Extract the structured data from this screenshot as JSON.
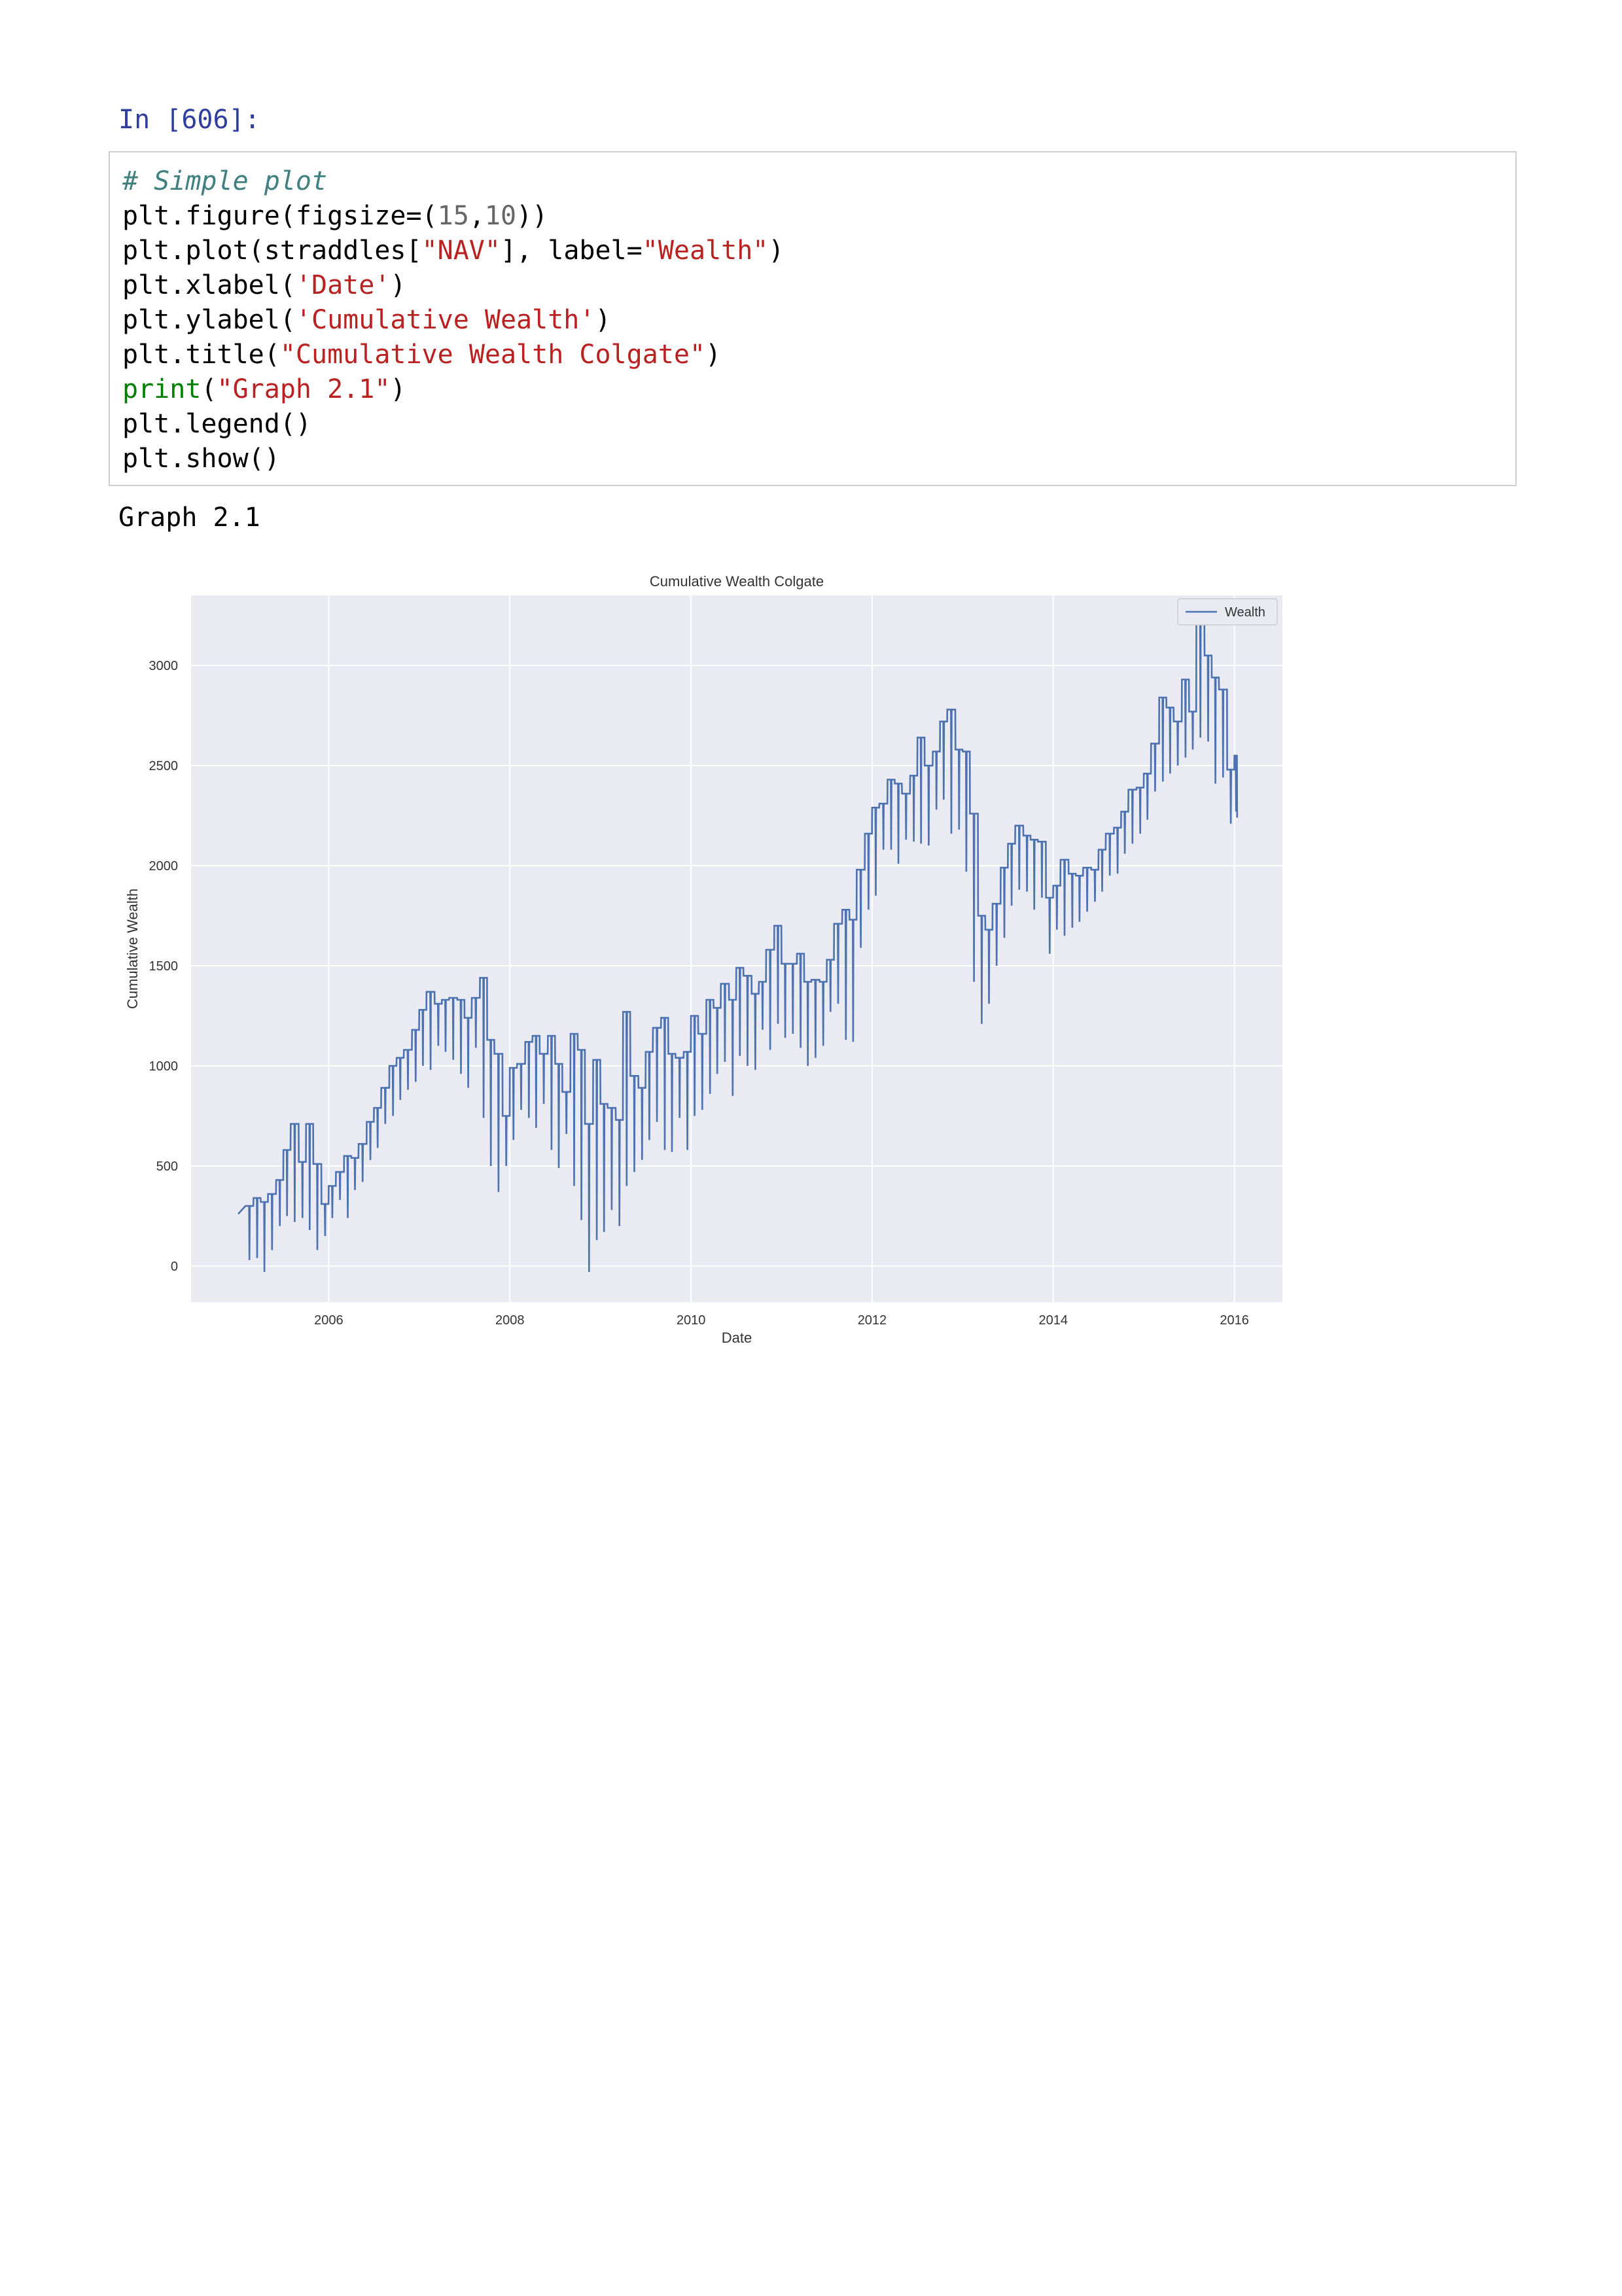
{
  "notebook": {
    "prompt": "In [606]:",
    "code_lines": [
      [
        {
          "t": "# Simple plot",
          "c": "com"
        }
      ],
      [
        {
          "t": "plt.figure(figsize=(",
          "c": ""
        },
        {
          "t": "15",
          "c": "num"
        },
        {
          "t": ",",
          "c": ""
        },
        {
          "t": "10",
          "c": "num"
        },
        {
          "t": "))",
          "c": ""
        }
      ],
      [
        {
          "t": "plt.plot(straddles[",
          "c": ""
        },
        {
          "t": "\"NAV\"",
          "c": "str"
        },
        {
          "t": "], label=",
          "c": ""
        },
        {
          "t": "\"Wealth\"",
          "c": "str"
        },
        {
          "t": ")",
          "c": ""
        }
      ],
      [
        {
          "t": "plt.xlabel(",
          "c": ""
        },
        {
          "t": "'Date'",
          "c": "str"
        },
        {
          "t": ")",
          "c": ""
        }
      ],
      [
        {
          "t": "plt.ylabel(",
          "c": ""
        },
        {
          "t": "'Cumulative Wealth'",
          "c": "str"
        },
        {
          "t": ")",
          "c": ""
        }
      ],
      [
        {
          "t": "plt.title(",
          "c": ""
        },
        {
          "t": "\"Cumulative Wealth Colgate\"",
          "c": "str"
        },
        {
          "t": ")",
          "c": ""
        }
      ],
      [
        {
          "t": "print",
          "c": "kw"
        },
        {
          "t": "(",
          "c": ""
        },
        {
          "t": "\"Graph 2.1\"",
          "c": "str"
        },
        {
          "t": ")",
          "c": ""
        }
      ],
      [
        {
          "t": "plt.legend()",
          "c": ""
        }
      ],
      [
        {
          "t": "plt.show()",
          "c": ""
        }
      ]
    ],
    "output_text": "Graph 2.1"
  },
  "colors": {
    "plot_background": "#eaeaf2",
    "grid": "#ffffff",
    "line": "#4c72b0"
  },
  "chart_data": {
    "type": "line",
    "title": "Cumulative Wealth Colgate",
    "xlabel": "Date",
    "ylabel": "Cumulative Wealth",
    "xlim": [
      2004.48,
      2016.53
    ],
    "ylim": [
      -180,
      3350
    ],
    "x_ticks": [
      "2006",
      "2008",
      "2010",
      "2012",
      "2014",
      "2016"
    ],
    "y_ticks": [
      "0",
      "500",
      "1000",
      "1500",
      "2000",
      "2500",
      "3000"
    ],
    "grid": true,
    "legend": {
      "position": "top-right",
      "entries": [
        "Wealth"
      ]
    },
    "series": [
      {
        "name": "Wealth",
        "monthly": [
          {
            "x": 2005.0,
            "start": 260,
            "low": 260,
            "high": 260
          },
          {
            "x": 2005.08,
            "start": 300,
            "low": 30,
            "high": 300
          },
          {
            "x": 2005.17,
            "start": 340,
            "low": 40,
            "high": 340
          },
          {
            "x": 2005.25,
            "start": 320,
            "low": -30,
            "high": 320
          },
          {
            "x": 2005.33,
            "start": 360,
            "low": 80,
            "high": 360
          },
          {
            "x": 2005.42,
            "start": 430,
            "low": 200,
            "high": 430
          },
          {
            "x": 2005.5,
            "start": 580,
            "low": 250,
            "high": 580
          },
          {
            "x": 2005.58,
            "start": 710,
            "low": 220,
            "high": 710
          },
          {
            "x": 2005.67,
            "start": 520,
            "low": 240,
            "high": 520
          },
          {
            "x": 2005.75,
            "start": 710,
            "low": 180,
            "high": 710
          },
          {
            "x": 2005.83,
            "start": 510,
            "low": 80,
            "high": 510
          },
          {
            "x": 2005.92,
            "start": 310,
            "low": 150,
            "high": 310
          },
          {
            "x": 2006.0,
            "start": 400,
            "low": 240,
            "high": 400
          },
          {
            "x": 2006.08,
            "start": 470,
            "low": 330,
            "high": 470
          },
          {
            "x": 2006.17,
            "start": 550,
            "low": 240,
            "high": 550
          },
          {
            "x": 2006.25,
            "start": 540,
            "low": 380,
            "high": 540
          },
          {
            "x": 2006.33,
            "start": 610,
            "low": 420,
            "high": 610
          },
          {
            "x": 2006.42,
            "start": 720,
            "low": 530,
            "high": 720
          },
          {
            "x": 2006.5,
            "start": 790,
            "low": 590,
            "high": 790
          },
          {
            "x": 2006.58,
            "start": 890,
            "low": 710,
            "high": 890
          },
          {
            "x": 2006.67,
            "start": 1000,
            "low": 750,
            "high": 1000
          },
          {
            "x": 2006.75,
            "start": 1040,
            "low": 830,
            "high": 1040
          },
          {
            "x": 2006.83,
            "start": 1080,
            "low": 880,
            "high": 1080
          },
          {
            "x": 2006.92,
            "start": 1180,
            "low": 920,
            "high": 1180
          },
          {
            "x": 2007.0,
            "start": 1280,
            "low": 1000,
            "high": 1280
          },
          {
            "x": 2007.08,
            "start": 1370,
            "low": 980,
            "high": 1370
          },
          {
            "x": 2007.17,
            "start": 1310,
            "low": 1100,
            "high": 1310
          },
          {
            "x": 2007.25,
            "start": 1330,
            "low": 1070,
            "high": 1330
          },
          {
            "x": 2007.33,
            "start": 1340,
            "low": 1030,
            "high": 1340
          },
          {
            "x": 2007.42,
            "start": 1330,
            "low": 960,
            "high": 1330
          },
          {
            "x": 2007.5,
            "start": 1240,
            "low": 890,
            "high": 1240
          },
          {
            "x": 2007.58,
            "start": 1340,
            "low": 1090,
            "high": 1340
          },
          {
            "x": 2007.67,
            "start": 1440,
            "low": 740,
            "high": 1440
          },
          {
            "x": 2007.75,
            "start": 1130,
            "low": 500,
            "high": 1130
          },
          {
            "x": 2007.83,
            "start": 1060,
            "low": 370,
            "high": 1060
          },
          {
            "x": 2007.92,
            "start": 750,
            "low": 500,
            "high": 750
          },
          {
            "x": 2008.0,
            "start": 990,
            "low": 630,
            "high": 990
          },
          {
            "x": 2008.08,
            "start": 1010,
            "low": 780,
            "high": 1010
          },
          {
            "x": 2008.17,
            "start": 1120,
            "low": 740,
            "high": 1120
          },
          {
            "x": 2008.25,
            "start": 1150,
            "low": 690,
            "high": 1150
          },
          {
            "x": 2008.33,
            "start": 1060,
            "low": 810,
            "high": 1060
          },
          {
            "x": 2008.42,
            "start": 1150,
            "low": 580,
            "high": 1150
          },
          {
            "x": 2008.5,
            "start": 1010,
            "low": 490,
            "high": 1010
          },
          {
            "x": 2008.58,
            "start": 870,
            "low": 660,
            "high": 870
          },
          {
            "x": 2008.67,
            "start": 1160,
            "low": 400,
            "high": 1160
          },
          {
            "x": 2008.75,
            "start": 1080,
            "low": 230,
            "high": 1080
          },
          {
            "x": 2008.83,
            "start": 710,
            "low": -30,
            "high": 710
          },
          {
            "x": 2008.92,
            "start": 1030,
            "low": 130,
            "high": 1030
          },
          {
            "x": 2009.0,
            "start": 810,
            "low": 170,
            "high": 810
          },
          {
            "x": 2009.08,
            "start": 790,
            "low": 280,
            "high": 790
          },
          {
            "x": 2009.17,
            "start": 730,
            "low": 200,
            "high": 730
          },
          {
            "x": 2009.25,
            "start": 1270,
            "low": 400,
            "high": 1270
          },
          {
            "x": 2009.33,
            "start": 950,
            "low": 470,
            "high": 950
          },
          {
            "x": 2009.42,
            "start": 890,
            "low": 530,
            "high": 890
          },
          {
            "x": 2009.5,
            "start": 1070,
            "low": 630,
            "high": 1070
          },
          {
            "x": 2009.58,
            "start": 1190,
            "low": 720,
            "high": 1190
          },
          {
            "x": 2009.67,
            "start": 1240,
            "low": 580,
            "high": 1240
          },
          {
            "x": 2009.75,
            "start": 1060,
            "low": 570,
            "high": 1060
          },
          {
            "x": 2009.83,
            "start": 1040,
            "low": 740,
            "high": 1040
          },
          {
            "x": 2009.92,
            "start": 1070,
            "low": 580,
            "high": 1070
          },
          {
            "x": 2010.0,
            "start": 1250,
            "low": 750,
            "high": 1250
          },
          {
            "x": 2010.08,
            "start": 1160,
            "low": 780,
            "high": 1160
          },
          {
            "x": 2010.17,
            "start": 1330,
            "low": 860,
            "high": 1330
          },
          {
            "x": 2010.25,
            "start": 1290,
            "low": 960,
            "high": 1290
          },
          {
            "x": 2010.33,
            "start": 1410,
            "low": 1020,
            "high": 1410
          },
          {
            "x": 2010.42,
            "start": 1330,
            "low": 850,
            "high": 1330
          },
          {
            "x": 2010.5,
            "start": 1490,
            "low": 1050,
            "high": 1490
          },
          {
            "x": 2010.58,
            "start": 1450,
            "low": 1000,
            "high": 1450
          },
          {
            "x": 2010.67,
            "start": 1360,
            "low": 980,
            "high": 1360
          },
          {
            "x": 2010.75,
            "start": 1420,
            "low": 1180,
            "high": 1420
          },
          {
            "x": 2010.83,
            "start": 1580,
            "low": 1080,
            "high": 1580
          },
          {
            "x": 2010.92,
            "start": 1700,
            "low": 1210,
            "high": 1700
          },
          {
            "x": 2011.0,
            "start": 1510,
            "low": 1140,
            "high": 1510
          },
          {
            "x": 2011.08,
            "start": 1510,
            "low": 1160,
            "high": 1510
          },
          {
            "x": 2011.17,
            "start": 1560,
            "low": 1090,
            "high": 1560
          },
          {
            "x": 2011.25,
            "start": 1420,
            "low": 1000,
            "high": 1420
          },
          {
            "x": 2011.33,
            "start": 1430,
            "low": 1040,
            "high": 1430
          },
          {
            "x": 2011.42,
            "start": 1420,
            "low": 1100,
            "high": 1420
          },
          {
            "x": 2011.5,
            "start": 1530,
            "low": 1270,
            "high": 1530
          },
          {
            "x": 2011.58,
            "start": 1710,
            "low": 1310,
            "high": 1710
          },
          {
            "x": 2011.67,
            "start": 1780,
            "low": 1130,
            "high": 1780
          },
          {
            "x": 2011.75,
            "start": 1730,
            "low": 1120,
            "high": 1730
          },
          {
            "x": 2011.83,
            "start": 1980,
            "low": 1590,
            "high": 1980
          },
          {
            "x": 2011.92,
            "start": 2160,
            "low": 1780,
            "high": 2160
          },
          {
            "x": 2012.0,
            "start": 2290,
            "low": 1850,
            "high": 2290
          },
          {
            "x": 2012.08,
            "start": 2310,
            "low": 2080,
            "high": 2310
          },
          {
            "x": 2012.17,
            "start": 2430,
            "low": 2080,
            "high": 2430
          },
          {
            "x": 2012.25,
            "start": 2410,
            "low": 2010,
            "high": 2410
          },
          {
            "x": 2012.33,
            "start": 2360,
            "low": 2130,
            "high": 2360
          },
          {
            "x": 2012.42,
            "start": 2450,
            "low": 2120,
            "high": 2450
          },
          {
            "x": 2012.5,
            "start": 2640,
            "low": 2110,
            "high": 2640
          },
          {
            "x": 2012.58,
            "start": 2500,
            "low": 2100,
            "high": 2500
          },
          {
            "x": 2012.67,
            "start": 2570,
            "low": 2280,
            "high": 2570
          },
          {
            "x": 2012.75,
            "start": 2720,
            "low": 2330,
            "high": 2720
          },
          {
            "x": 2012.83,
            "start": 2780,
            "low": 2160,
            "high": 2780
          },
          {
            "x": 2012.92,
            "start": 2580,
            "low": 2180,
            "high": 2580
          },
          {
            "x": 2013.0,
            "start": 2570,
            "low": 1970,
            "high": 2570
          },
          {
            "x": 2013.08,
            "start": 2260,
            "low": 1420,
            "high": 2260
          },
          {
            "x": 2013.17,
            "start": 1750,
            "low": 1210,
            "high": 1750
          },
          {
            "x": 2013.25,
            "start": 1680,
            "low": 1310,
            "high": 1680
          },
          {
            "x": 2013.33,
            "start": 1810,
            "low": 1500,
            "high": 1810
          },
          {
            "x": 2013.42,
            "start": 1990,
            "low": 1640,
            "high": 1990
          },
          {
            "x": 2013.5,
            "start": 2110,
            "low": 1800,
            "high": 2110
          },
          {
            "x": 2013.58,
            "start": 2200,
            "low": 1880,
            "high": 2200
          },
          {
            "x": 2013.67,
            "start": 2150,
            "low": 1870,
            "high": 2150
          },
          {
            "x": 2013.75,
            "start": 2130,
            "low": 1780,
            "high": 2130
          },
          {
            "x": 2013.83,
            "start": 2120,
            "low": 1840,
            "high": 2120
          },
          {
            "x": 2013.92,
            "start": 1840,
            "low": 1560,
            "high": 1840
          },
          {
            "x": 2014.0,
            "start": 1900,
            "low": 1680,
            "high": 1900
          },
          {
            "x": 2014.08,
            "start": 2030,
            "low": 1650,
            "high": 2030
          },
          {
            "x": 2014.17,
            "start": 1960,
            "low": 1690,
            "high": 1960
          },
          {
            "x": 2014.25,
            "start": 1950,
            "low": 1720,
            "high": 1950
          },
          {
            "x": 2014.33,
            "start": 1990,
            "low": 1770,
            "high": 1990
          },
          {
            "x": 2014.42,
            "start": 1980,
            "low": 1820,
            "high": 1980
          },
          {
            "x": 2014.5,
            "start": 2080,
            "low": 1870,
            "high": 2080
          },
          {
            "x": 2014.58,
            "start": 2160,
            "low": 1950,
            "high": 2160
          },
          {
            "x": 2014.67,
            "start": 2190,
            "low": 1960,
            "high": 2190
          },
          {
            "x": 2014.75,
            "start": 2270,
            "low": 2060,
            "high": 2270
          },
          {
            "x": 2014.83,
            "start": 2380,
            "low": 2110,
            "high": 2380
          },
          {
            "x": 2014.92,
            "start": 2390,
            "low": 2160,
            "high": 2390
          },
          {
            "x": 2015.0,
            "start": 2460,
            "low": 2230,
            "high": 2460
          },
          {
            "x": 2015.08,
            "start": 2610,
            "low": 2370,
            "high": 2610
          },
          {
            "x": 2015.17,
            "start": 2840,
            "low": 2420,
            "high": 2840
          },
          {
            "x": 2015.25,
            "start": 2790,
            "low": 2460,
            "high": 2790
          },
          {
            "x": 2015.33,
            "start": 2720,
            "low": 2500,
            "high": 2720
          },
          {
            "x": 2015.42,
            "start": 2930,
            "low": 2540,
            "high": 2930
          },
          {
            "x": 2015.5,
            "start": 2770,
            "low": 2580,
            "high": 2770
          },
          {
            "x": 2015.58,
            "start": 3230,
            "low": 2640,
            "high": 3230
          },
          {
            "x": 2015.67,
            "start": 3050,
            "low": 2620,
            "high": 3050
          },
          {
            "x": 2015.75,
            "start": 2940,
            "low": 2410,
            "high": 2940
          },
          {
            "x": 2015.83,
            "start": 2880,
            "low": 2440,
            "high": 2880
          },
          {
            "x": 2015.92,
            "start": 2480,
            "low": 2210,
            "high": 2480
          },
          {
            "x": 2016.0,
            "start": 2550,
            "low": 2270,
            "high": 2550
          },
          {
            "x": 2016.03,
            "start": 2240,
            "low": 2240,
            "high": 2240
          }
        ]
      }
    ]
  }
}
